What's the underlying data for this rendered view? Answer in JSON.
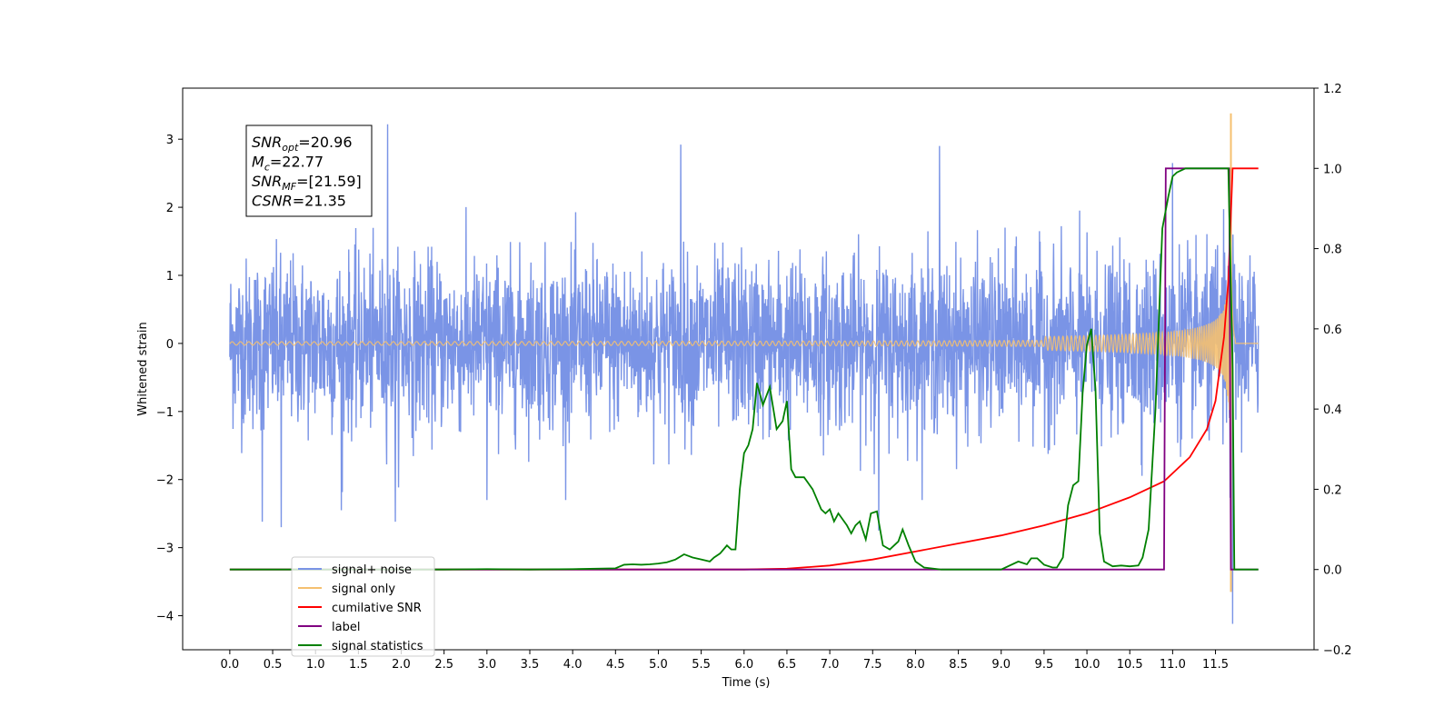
{
  "chart_data": {
    "type": "line",
    "xlabel": "Time (s)",
    "ylabel": "Whitened strain",
    "xlim": [
      -0.55,
      12.65
    ],
    "ylim": [
      -4.5,
      3.75
    ],
    "y2lim": [
      -0.2,
      1.2
    ],
    "xticks": [
      "0.0",
      "0.5",
      "1.0",
      "1.5",
      "2.0",
      "2.5",
      "3.0",
      "3.5",
      "4.0",
      "4.5",
      "5.0",
      "5.5",
      "6.0",
      "6.5",
      "7.0",
      "7.5",
      "8.0",
      "8.5",
      "9.0",
      "9.5",
      "10.0",
      "10.5",
      "11.0",
      "11.5"
    ],
    "yticks": [
      "3",
      "2",
      "1",
      "0",
      "−1",
      "−2",
      "−3",
      "−4"
    ],
    "y2ticks": [
      "1.2",
      "1.0",
      "0.8",
      "0.6",
      "0.4",
      "0.2",
      "0.0",
      "−0.2"
    ],
    "annotation": {
      "lines": [
        {
          "base": "SNR",
          "sub": "opt",
          "rest": "=20.96"
        },
        {
          "base": "M",
          "sub": "c",
          "rest": "=22.77"
        },
        {
          "base": "SNR",
          "sub": "MF",
          "rest": "=[21.59]"
        },
        {
          "base": "CSNR",
          "sub": "",
          "rest": "=21.35"
        }
      ]
    },
    "legend": {
      "position": "lower-left",
      "entries": [
        {
          "label": "signal+ noise",
          "color": "#7a94e6"
        },
        {
          "label": "signal only",
          "color": "#f5c070"
        },
        {
          "label": "cumilative SNR",
          "color": "#ff0000"
        },
        {
          "label": "label",
          "color": "#800080"
        },
        {
          "label": "signal statistics",
          "color": "#008000"
        }
      ]
    },
    "series": [
      {
        "name": "signal+ noise",
        "axis": "left",
        "color": "#7a94e6",
        "x_range": [
          0.0,
          12.0
        ],
        "typical_range": [
          -1.5,
          1.5
        ],
        "extremes": [
          {
            "x": 1.84,
            "y": 3.22
          },
          {
            "x": 1.93,
            "y": -2.62
          },
          {
            "x": 0.38,
            "y": -2.62
          },
          {
            "x": 0.6,
            "y": -2.7
          },
          {
            "x": 5.26,
            "y": 2.92
          },
          {
            "x": 11.7,
            "y": -4.12
          },
          {
            "x": 11.68,
            "y": 3.0
          },
          {
            "x": 11.0,
            "y": 2.65
          },
          {
            "x": 8.28,
            "y": 2.9
          },
          {
            "x": 3.0,
            "y": -2.3
          },
          {
            "x": 7.57,
            "y": -2.75
          },
          {
            "x": 1.3,
            "y": -2.45
          }
        ]
      },
      {
        "name": "signal only",
        "axis": "left",
        "color": "#f5c070",
        "description": "inspiral chirp, amplitude grows toward merger",
        "x_range": [
          0.0,
          12.0
        ],
        "peak": {
          "x": 11.68,
          "y": 3.38
        },
        "trough": {
          "x": 11.68,
          "y": -3.65
        },
        "merger_time": 11.68
      },
      {
        "name": "cumilative SNR",
        "axis": "right",
        "color": "#ff0000",
        "points": [
          [
            0.0,
            0.0
          ],
          [
            6.0,
            0.0
          ],
          [
            6.5,
            0.002
          ],
          [
            7.0,
            0.01
          ],
          [
            7.5,
            0.025
          ],
          [
            8.0,
            0.045
          ],
          [
            8.5,
            0.065
          ],
          [
            9.0,
            0.085
          ],
          [
            9.5,
            0.11
          ],
          [
            10.0,
            0.14
          ],
          [
            10.5,
            0.18
          ],
          [
            10.9,
            0.22
          ],
          [
            11.2,
            0.28
          ],
          [
            11.4,
            0.35
          ],
          [
            11.5,
            0.42
          ],
          [
            11.6,
            0.58
          ],
          [
            11.65,
            0.72
          ],
          [
            11.7,
            1.0
          ],
          [
            12.0,
            1.0
          ]
        ]
      },
      {
        "name": "label",
        "axis": "right",
        "color": "#800080",
        "points": [
          [
            0.0,
            0.0
          ],
          [
            10.9,
            0.0
          ],
          [
            10.92,
            1.0
          ],
          [
            11.66,
            1.0
          ],
          [
            11.68,
            0.0
          ],
          [
            12.0,
            0.0
          ]
        ]
      },
      {
        "name": "signal statistics",
        "axis": "right",
        "color": "#008000",
        "points": [
          [
            0.0,
            0.0
          ],
          [
            2.5,
            0.0
          ],
          [
            3.0,
            0.001
          ],
          [
            3.5,
            0.0
          ],
          [
            4.0,
            0.001
          ],
          [
            4.5,
            0.003
          ],
          [
            4.6,
            0.012
          ],
          [
            4.7,
            0.013
          ],
          [
            4.8,
            0.012
          ],
          [
            4.9,
            0.013
          ],
          [
            5.0,
            0.015
          ],
          [
            5.1,
            0.018
          ],
          [
            5.2,
            0.025
          ],
          [
            5.3,
            0.038
          ],
          [
            5.4,
            0.03
          ],
          [
            5.5,
            0.025
          ],
          [
            5.6,
            0.02
          ],
          [
            5.65,
            0.03
          ],
          [
            5.72,
            0.04
          ],
          [
            5.8,
            0.06
          ],
          [
            5.85,
            0.05
          ],
          [
            5.9,
            0.05
          ],
          [
            5.95,
            0.2
          ],
          [
            6.0,
            0.29
          ],
          [
            6.05,
            0.31
          ],
          [
            6.1,
            0.35
          ],
          [
            6.15,
            0.465
          ],
          [
            6.22,
            0.41
          ],
          [
            6.3,
            0.455
          ],
          [
            6.38,
            0.35
          ],
          [
            6.45,
            0.37
          ],
          [
            6.5,
            0.42
          ],
          [
            6.55,
            0.25
          ],
          [
            6.6,
            0.23
          ],
          [
            6.7,
            0.23
          ],
          [
            6.8,
            0.2
          ],
          [
            6.9,
            0.15
          ],
          [
            6.95,
            0.14
          ],
          [
            7.0,
            0.15
          ],
          [
            7.05,
            0.12
          ],
          [
            7.1,
            0.14
          ],
          [
            7.2,
            0.11
          ],
          [
            7.25,
            0.09
          ],
          [
            7.3,
            0.11
          ],
          [
            7.35,
            0.12
          ],
          [
            7.42,
            0.075
          ],
          [
            7.48,
            0.14
          ],
          [
            7.55,
            0.145
          ],
          [
            7.62,
            0.06
          ],
          [
            7.7,
            0.05
          ],
          [
            7.8,
            0.07
          ],
          [
            7.85,
            0.1
          ],
          [
            7.92,
            0.06
          ],
          [
            8.0,
            0.02
          ],
          [
            8.1,
            0.005
          ],
          [
            8.3,
            0.0
          ],
          [
            9.0,
            0.0
          ],
          [
            9.2,
            0.02
          ],
          [
            9.3,
            0.013
          ],
          [
            9.35,
            0.028
          ],
          [
            9.42,
            0.028
          ],
          [
            9.5,
            0.012
          ],
          [
            9.6,
            0.005
          ],
          [
            9.65,
            0.005
          ],
          [
            9.72,
            0.03
          ],
          [
            9.78,
            0.16
          ],
          [
            9.84,
            0.21
          ],
          [
            9.9,
            0.22
          ],
          [
            9.95,
            0.44
          ],
          [
            10.0,
            0.56
          ],
          [
            10.05,
            0.6
          ],
          [
            10.1,
            0.45
          ],
          [
            10.15,
            0.09
          ],
          [
            10.2,
            0.02
          ],
          [
            10.3,
            0.008
          ],
          [
            10.4,
            0.01
          ],
          [
            10.5,
            0.008
          ],
          [
            10.6,
            0.01
          ],
          [
            10.65,
            0.03
          ],
          [
            10.72,
            0.1
          ],
          [
            10.8,
            0.4
          ],
          [
            10.88,
            0.85
          ],
          [
            10.95,
            0.93
          ],
          [
            11.0,
            0.98
          ],
          [
            11.05,
            0.99
          ],
          [
            11.15,
            1.0
          ],
          [
            11.35,
            1.0
          ],
          [
            11.5,
            1.0
          ],
          [
            11.65,
            1.0
          ],
          [
            11.7,
            0.5
          ],
          [
            11.72,
            0.0
          ],
          [
            12.0,
            0.0
          ]
        ]
      }
    ]
  }
}
